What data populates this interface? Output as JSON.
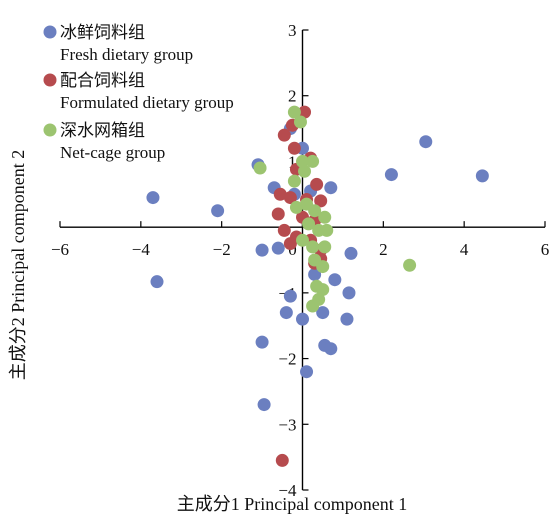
{
  "chart_data": {
    "type": "scatter",
    "xlabel": "主成分1 Principal component 1",
    "ylabel": "主成分2 Principal component 2",
    "xlim": [
      -6,
      6
    ],
    "ylim": [
      -4,
      3
    ],
    "xticks": [
      "−6",
      "−4",
      "−2",
      "0",
      "2",
      "4",
      "6"
    ],
    "yticks": [
      "3",
      "2",
      "1",
      "−1",
      "−2",
      "−3",
      "−4"
    ],
    "legend_position": "top-left",
    "series": [
      {
        "name_zh": "冰鲜饲料组",
        "name": "Fresh dietary group",
        "color": "#6b7fc0",
        "points": [
          [
            -3.7,
            0.45
          ],
          [
            -2.1,
            0.25
          ],
          [
            -3.6,
            -0.83
          ],
          [
            -1.1,
            0.95
          ],
          [
            -0.7,
            0.6
          ],
          [
            -1.0,
            -0.35
          ],
          [
            -0.6,
            -0.32
          ],
          [
            -0.3,
            1.5
          ],
          [
            0.0,
            1.2
          ],
          [
            -0.2,
            0.5
          ],
          [
            0.2,
            0.55
          ],
          [
            0.7,
            0.6
          ],
          [
            1.2,
            -0.4
          ],
          [
            2.2,
            0.8
          ],
          [
            3.05,
            1.3
          ],
          [
            4.45,
            0.78
          ],
          [
            0.3,
            -0.72
          ],
          [
            0.8,
            -0.8
          ],
          [
            1.15,
            -1.0
          ],
          [
            -0.3,
            -1.05
          ],
          [
            -0.4,
            -1.3
          ],
          [
            0.5,
            -1.3
          ],
          [
            0.0,
            -1.4
          ],
          [
            1.1,
            -1.4
          ],
          [
            -1.0,
            -1.75
          ],
          [
            0.55,
            -1.8
          ],
          [
            0.7,
            -1.85
          ],
          [
            0.1,
            -2.2
          ],
          [
            -0.95,
            -2.7
          ]
        ]
      },
      {
        "name_zh": "配合饲料组",
        "name": "Formulated dietary group",
        "color": "#b64b4e",
        "points": [
          [
            0.05,
            1.75
          ],
          [
            -0.25,
            1.55
          ],
          [
            -0.45,
            1.4
          ],
          [
            -0.2,
            1.2
          ],
          [
            0.2,
            1.05
          ],
          [
            -0.15,
            0.88
          ],
          [
            0.35,
            0.65
          ],
          [
            -0.55,
            0.5
          ],
          [
            -0.3,
            0.45
          ],
          [
            0.1,
            0.42
          ],
          [
            0.45,
            0.4
          ],
          [
            -0.6,
            0.2
          ],
          [
            0.0,
            0.15
          ],
          [
            0.3,
            0.1
          ],
          [
            -0.45,
            -0.05
          ],
          [
            -0.15,
            -0.15
          ],
          [
            0.2,
            -0.2
          ],
          [
            0.45,
            -0.35
          ],
          [
            -0.3,
            -0.25
          ],
          [
            0.3,
            -0.55
          ],
          [
            0.45,
            -0.48
          ],
          [
            -0.5,
            -3.55
          ]
        ]
      },
      {
        "name_zh": "深水网箱组",
        "name": "Net-cage group",
        "color": "#9cc470",
        "points": [
          [
            -0.2,
            1.75
          ],
          [
            -0.05,
            1.6
          ],
          [
            -1.05,
            0.9
          ],
          [
            0.0,
            1.0
          ],
          [
            0.25,
            1.0
          ],
          [
            0.05,
            0.85
          ],
          [
            -0.2,
            0.7
          ],
          [
            -0.15,
            0.3
          ],
          [
            0.1,
            0.35
          ],
          [
            0.3,
            0.25
          ],
          [
            0.55,
            0.15
          ],
          [
            0.15,
            0.05
          ],
          [
            0.4,
            -0.05
          ],
          [
            0.6,
            -0.05
          ],
          [
            0.0,
            -0.2
          ],
          [
            0.25,
            -0.3
          ],
          [
            0.55,
            -0.3
          ],
          [
            0.3,
            -0.5
          ],
          [
            0.5,
            -0.6
          ],
          [
            2.65,
            -0.58
          ],
          [
            0.35,
            -0.9
          ],
          [
            0.5,
            -0.95
          ],
          [
            0.4,
            -1.1
          ],
          [
            0.25,
            -1.2
          ]
        ]
      }
    ]
  }
}
